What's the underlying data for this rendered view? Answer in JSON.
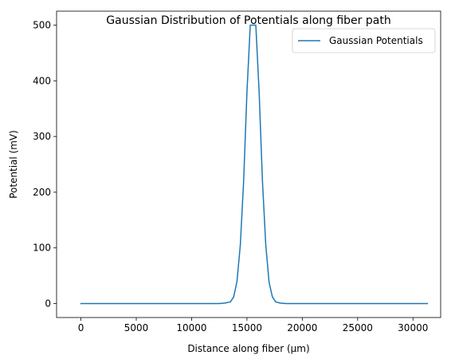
{
  "chart_data": {
    "type": "line",
    "title": "Gaussian Distribution of Potentials along fiber path",
    "xlabel": "Distance along fiber (µm)",
    "ylabel": "Potential (mV)",
    "xlim": [
      -2200,
      32500
    ],
    "ylim": [
      -25,
      525
    ],
    "xticks": [
      0,
      5000,
      10000,
      15000,
      20000,
      25000,
      30000
    ],
    "yticks": [
      0,
      100,
      200,
      300,
      400,
      500
    ],
    "grid": false,
    "legend": {
      "placement": "top-right"
    },
    "series": [
      {
        "name": "Gaussian Potentials",
        "color": "#1f77b4",
        "x": [
          0,
          12500,
          13000,
          13500,
          13800,
          14100,
          14400,
          14700,
          15000,
          15300,
          15500,
          15800,
          16100,
          16400,
          16700,
          17000,
          17300,
          17600,
          18000,
          18500,
          31300
        ],
        "y": [
          0,
          0,
          1,
          3,
          12,
          40,
          105,
          220,
          380,
          500,
          500,
          500,
          380,
          220,
          105,
          38,
          12,
          3,
          1,
          0,
          0
        ]
      }
    ]
  }
}
